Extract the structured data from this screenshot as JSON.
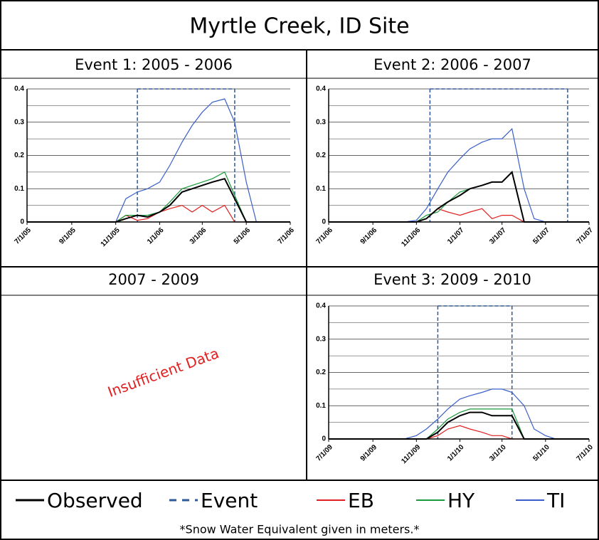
{
  "title": "Myrtle Creek, ID Site",
  "footnote": "*Snow Water Equivalent given in meters.*",
  "empty_panel": {
    "title": "2007 - 2009",
    "annotation": "Insufficient Data"
  },
  "chart_data": [
    {
      "type": "line",
      "title": "Event 1: 2005 - 2006",
      "x": [
        "2005-07-01",
        "2005-07-15",
        "2005-08-01",
        "2005-08-15",
        "2005-09-01",
        "2005-09-15",
        "2005-10-01",
        "2005-10-15",
        "2005-11-01",
        "2005-11-15",
        "2005-12-01",
        "2005-12-15",
        "2006-01-01",
        "2006-01-15",
        "2006-02-01",
        "2006-02-15",
        "2006-03-01",
        "2006-03-15",
        "2006-04-01",
        "2006-04-15",
        "2006-05-01",
        "2006-05-15",
        "2006-06-01",
        "2006-06-15",
        "2006-07-01"
      ],
      "series": [
        {
          "name": "Observed",
          "color": "#000000",
          "values": [
            0,
            0,
            0,
            0,
            0,
            0,
            0,
            0,
            0,
            0.01,
            0.02,
            0.015,
            0.03,
            0.05,
            0.09,
            0.1,
            0.11,
            0.12,
            0.13,
            0.07,
            0,
            0,
            0,
            0,
            0
          ]
        },
        {
          "name": "EB",
          "color": "#e02020",
          "values": [
            0,
            0,
            0,
            0,
            0,
            0,
            0,
            0,
            0,
            0.02,
            0.005,
            0.01,
            0.03,
            0.04,
            0.05,
            0.03,
            0.05,
            0.03,
            0.05,
            0,
            0,
            0,
            0,
            0,
            0
          ]
        },
        {
          "name": "HY",
          "color": "#1a9a3a",
          "values": [
            0,
            0,
            0,
            0,
            0,
            0,
            0,
            0,
            0,
            0.02,
            0.02,
            0.02,
            0.03,
            0.06,
            0.1,
            0.11,
            0.12,
            0.13,
            0.15,
            0.08,
            0,
            0,
            0,
            0,
            0
          ]
        },
        {
          "name": "TI",
          "color": "#3a5fc8",
          "values": [
            0,
            0,
            0,
            0,
            0,
            0,
            0,
            0,
            0,
            0.07,
            0.09,
            0.1,
            0.12,
            0.17,
            0.24,
            0.29,
            0.33,
            0.36,
            0.37,
            0.3,
            0.12,
            0,
            0,
            0,
            0
          ]
        }
      ],
      "event": {
        "name": "Event",
        "color": "#2e5a9c",
        "start": "2005-12-01",
        "end": "2006-04-15"
      },
      "xlim": [
        "2005-07-01",
        "2006-07-01"
      ],
      "xticks": [
        {
          "value": "2005-07-01",
          "label": "7/1/05"
        },
        {
          "value": "2005-09-01",
          "label": "9/1/05"
        },
        {
          "value": "2005-11-01",
          "label": "11/1/05"
        },
        {
          "value": "2006-01-01",
          "label": "1/1/06"
        },
        {
          "value": "2006-03-01",
          "label": "3/1/06"
        },
        {
          "value": "2006-05-01",
          "label": "5/1/06"
        },
        {
          "value": "2006-07-01",
          "label": "7/1/06"
        }
      ],
      "ylim": [
        0,
        0.4
      ],
      "yticks": [
        0,
        0.1,
        0.2,
        0.3,
        0.4
      ],
      "minor_yticks": [
        0.05,
        0.15,
        0.25,
        0.35
      ],
      "grid": true
    },
    {
      "type": "line",
      "title": "Event 2: 2006 - 2007",
      "x": [
        "2006-07-01",
        "2006-07-15",
        "2006-08-01",
        "2006-08-15",
        "2006-09-01",
        "2006-09-15",
        "2006-10-01",
        "2006-10-15",
        "2006-11-01",
        "2006-11-15",
        "2006-12-01",
        "2006-12-15",
        "2007-01-01",
        "2007-01-15",
        "2007-02-01",
        "2007-02-15",
        "2007-03-01",
        "2007-03-15",
        "2007-04-01",
        "2007-04-15",
        "2007-05-01",
        "2007-05-15",
        "2007-06-01",
        "2007-06-15",
        "2007-07-01"
      ],
      "series": [
        {
          "name": "Observed",
          "color": "#000000",
          "values": [
            0,
            0,
            0,
            0,
            0,
            0,
            0,
            0,
            0,
            0.01,
            0.04,
            0.06,
            0.08,
            0.1,
            0.11,
            0.12,
            0.12,
            0.15,
            0,
            0,
            0,
            0,
            0,
            0,
            0
          ]
        },
        {
          "name": "EB",
          "color": "#e02020",
          "values": [
            0,
            0,
            0,
            0,
            0,
            0,
            0,
            0,
            0,
            0.01,
            0.04,
            0.03,
            0.02,
            0.03,
            0.04,
            0.01,
            0.02,
            0.02,
            0,
            0,
            0,
            0,
            0,
            0,
            0
          ]
        },
        {
          "name": "HY",
          "color": "#1a9a3a",
          "values": [
            0,
            0,
            0,
            0,
            0,
            0,
            0,
            0,
            0,
            0.02,
            0.03,
            0.06,
            0.09,
            0.1,
            0.11,
            0.12,
            0.12,
            0.15,
            0,
            0,
            0,
            0,
            0,
            0,
            0
          ]
        },
        {
          "name": "TI",
          "color": "#3a5fc8",
          "values": [
            0,
            0,
            0,
            0,
            0,
            0,
            0,
            0,
            0.005,
            0.04,
            0.1,
            0.15,
            0.19,
            0.22,
            0.24,
            0.25,
            0.25,
            0.28,
            0.1,
            0.01,
            0,
            0,
            0,
            0,
            0
          ]
        }
      ],
      "event": {
        "name": "Event",
        "color": "#2e5a9c",
        "start": "2006-11-20",
        "end": "2007-06-01"
      },
      "xlim": [
        "2006-07-01",
        "2007-07-01"
      ],
      "xticks": [
        {
          "value": "2006-07-01",
          "label": "7/1/06"
        },
        {
          "value": "2006-09-01",
          "label": "9/1/06"
        },
        {
          "value": "2006-11-01",
          "label": "11/1/06"
        },
        {
          "value": "2007-01-01",
          "label": "1/1/07"
        },
        {
          "value": "2007-03-01",
          "label": "3/1/07"
        },
        {
          "value": "2007-05-01",
          "label": "5/1/07"
        },
        {
          "value": "2007-07-01",
          "label": "7/1/07"
        }
      ],
      "ylim": [
        0,
        0.4
      ],
      "yticks": [
        0,
        0.1,
        0.2,
        0.3,
        0.4
      ],
      "minor_yticks": [
        0.05,
        0.15,
        0.25,
        0.35
      ],
      "grid": true
    },
    {
      "type": "line",
      "title": "Event 3: 2009 - 2010",
      "x": [
        "2009-07-01",
        "2009-07-15",
        "2009-08-01",
        "2009-08-15",
        "2009-09-01",
        "2009-09-15",
        "2009-10-01",
        "2009-10-15",
        "2009-11-01",
        "2009-11-15",
        "2009-12-01",
        "2009-12-15",
        "2010-01-01",
        "2010-01-15",
        "2010-02-01",
        "2010-02-15",
        "2010-03-01",
        "2010-03-15",
        "2010-04-01",
        "2010-04-15",
        "2010-05-01",
        "2010-05-15",
        "2010-06-01",
        "2010-06-15",
        "2010-07-01"
      ],
      "series": [
        {
          "name": "Observed",
          "color": "#000000",
          "values": [
            0,
            0,
            0,
            0,
            0,
            0,
            0,
            0,
            0,
            0,
            0.02,
            0.05,
            0.07,
            0.08,
            0.08,
            0.07,
            0.07,
            0.07,
            0,
            0,
            0,
            0,
            0,
            0,
            0
          ]
        },
        {
          "name": "EB",
          "color": "#e02020",
          "values": [
            0,
            0,
            0,
            0,
            0,
            0,
            0,
            0,
            0,
            0,
            0.01,
            0.03,
            0.04,
            0.03,
            0.02,
            0.01,
            0.01,
            0,
            0,
            0,
            0,
            0,
            0,
            0,
            0
          ]
        },
        {
          "name": "HY",
          "color": "#1a9a3a",
          "values": [
            0,
            0,
            0,
            0,
            0,
            0,
            0,
            0,
            0,
            0,
            0.03,
            0.06,
            0.08,
            0.09,
            0.09,
            0.09,
            0.09,
            0.09,
            0,
            0,
            0,
            0,
            0,
            0,
            0
          ]
        },
        {
          "name": "TI",
          "color": "#3a5fc8",
          "values": [
            0,
            0,
            0,
            0,
            0,
            0,
            0,
            0,
            0.01,
            0.03,
            0.06,
            0.09,
            0.12,
            0.13,
            0.14,
            0.15,
            0.15,
            0.14,
            0.1,
            0.03,
            0.01,
            0,
            0,
            0,
            0
          ]
        }
      ],
      "event": {
        "name": "Event",
        "color": "#2e5a9c",
        "start": "2009-12-01",
        "end": "2010-03-15"
      },
      "xlim": [
        "2009-07-01",
        "2010-07-01"
      ],
      "xticks": [
        {
          "value": "2009-07-01",
          "label": "7/1/09"
        },
        {
          "value": "2009-09-01",
          "label": "9/1/09"
        },
        {
          "value": "2009-11-01",
          "label": "11/1/09"
        },
        {
          "value": "2010-01-01",
          "label": "1/1/10"
        },
        {
          "value": "2010-03-01",
          "label": "3/1/10"
        },
        {
          "value": "2010-05-01",
          "label": "5/1/10"
        },
        {
          "value": "2010-07-01",
          "label": "7/1/10"
        }
      ],
      "ylim": [
        0,
        0.4
      ],
      "yticks": [
        0,
        0.1,
        0.2,
        0.3,
        0.4
      ],
      "minor_yticks": [
        0.05,
        0.15,
        0.25,
        0.35
      ],
      "grid": true
    }
  ]
}
